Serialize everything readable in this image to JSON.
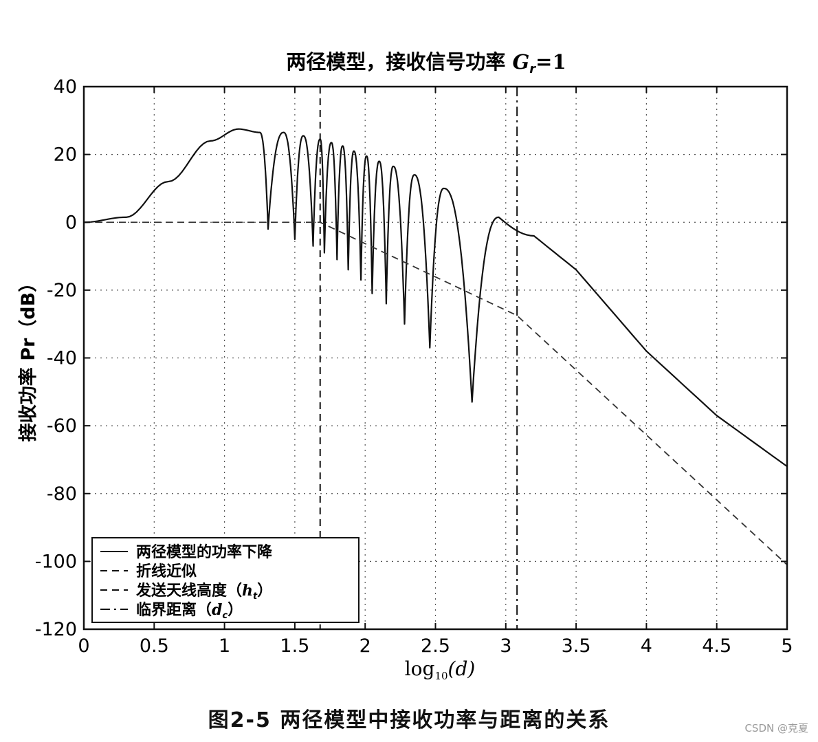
{
  "chart_data": {
    "type": "line",
    "title": "两径模型，接收信号功率 Gr=1",
    "title_parts": {
      "prefix": "两径模型，接收信号功率 ",
      "var": "G",
      "sub": "r",
      "suffix": "=1"
    },
    "xlabel": "log10(d)",
    "xlabel_parts": {
      "prefix": "log",
      "sub": "10",
      "suffix": "(d)"
    },
    "ylabel": "接收功率  Pr（dB）",
    "xlim": [
      0,
      5
    ],
    "ylim": [
      -120,
      40
    ],
    "xticks": [
      0,
      0.5,
      1,
      1.5,
      2,
      2.5,
      3,
      3.5,
      4,
      4.5,
      5
    ],
    "xtick_labels": [
      "0",
      "0.5",
      "1",
      "1.5",
      "2",
      "2.5",
      "3",
      "3.5",
      "4",
      "4.5",
      "5"
    ],
    "yticks": [
      40,
      20,
      0,
      -20,
      -40,
      -60,
      -80,
      -100,
      -120
    ],
    "ytick_labels": [
      "40",
      "20",
      "0",
      "-20",
      "-40",
      "-60",
      "-80",
      "-100",
      "-120"
    ],
    "grid": true,
    "grid_style": "dotted",
    "legend_position": "bottom-left",
    "series": [
      {
        "name": "两径模型的功率下降",
        "style": "solid",
        "envelope": {
          "x": [
            0,
            0.3,
            0.6,
            0.9,
            1.1,
            1.25
          ],
          "y": [
            0,
            1.5,
            12,
            24,
            27.5,
            26.5
          ]
        },
        "peaks": {
          "x": [
            1.42,
            1.56,
            1.68,
            1.76,
            1.84,
            1.92,
            2.01,
            2.1,
            2.2,
            2.35,
            2.56,
            2.95
          ],
          "y": [
            26.5,
            25.5,
            24.5,
            23.5,
            22.5,
            21,
            19.5,
            18,
            16.5,
            14,
            10,
            1.5
          ]
        },
        "nulls": {
          "x": [
            1.31,
            1.5,
            1.63,
            1.71,
            1.8,
            1.88,
            1.97,
            2.05,
            2.15,
            2.28,
            2.46,
            2.76
          ],
          "y": [
            -2,
            -5,
            -7,
            -9,
            -11,
            -14,
            -17,
            -21,
            -24,
            -30,
            -37,
            -53
          ]
        },
        "tail": {
          "x": [
            2.95,
            3.2,
            3.5,
            4.0,
            4.5,
            5.0
          ],
          "y": [
            1.5,
            -4,
            -14,
            -38,
            -57,
            -72
          ]
        }
      },
      {
        "name": "折线近似",
        "style": "dashed",
        "x": [
          0,
          1.68,
          3.08,
          5.0
        ],
        "y": [
          0,
          0,
          -27.5,
          -101
        ]
      }
    ],
    "vlines": [
      {
        "name": "发送天线高度（ht）",
        "label_prefix": "发送天线高度（",
        "label_var": "h",
        "label_sub": "t",
        "label_suffix": "）",
        "x": 1.68,
        "style": "dashed"
      },
      {
        "name": "临界距离（dc）",
        "label_prefix": "临界距离（",
        "label_var": "d",
        "label_sub": "c",
        "label_suffix": "）",
        "x": 3.08,
        "style": "dashdot"
      }
    ]
  },
  "caption": "图2-5   两径模型中接收功率与距离的关系",
  "watermark": "CSDN @克夏"
}
